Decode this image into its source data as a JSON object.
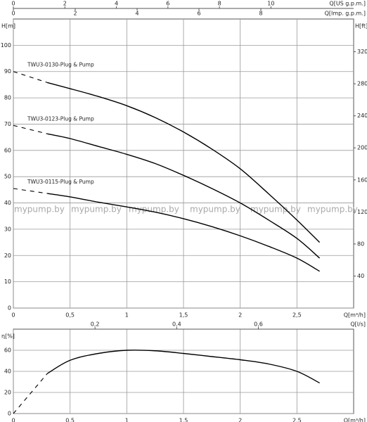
{
  "chart_data": [
    {
      "type": "line",
      "xlim": [
        0,
        3
      ],
      "xticks": [
        0,
        {
          "value": 0.5,
          "label": "0,5"
        },
        1,
        {
          "value": 1.5,
          "label": "1,5"
        },
        2,
        {
          "value": 2.5,
          "label": "2,5"
        }
      ],
      "xlabel": "Q[m³/h]",
      "ylim": [
        0,
        110
      ],
      "yticks": [
        0,
        10,
        20,
        30,
        40,
        50,
        60,
        70,
        80,
        90,
        100
      ],
      "ylabel": "H[m]",
      "y2lim": [
        0,
        360.9
      ],
      "y2ticks": [
        40,
        80,
        120,
        160,
        200,
        240,
        280,
        320
      ],
      "y2label": "H[ft]",
      "grid": true,
      "top_axes": [
        {
          "label": "Q[US g.p.m.]",
          "xlim": [
            0,
            13.21
          ],
          "xticks": [
            0,
            2,
            4,
            6,
            8,
            10
          ]
        },
        {
          "label": "Q[Imp. g.p.m.]",
          "xlim": [
            0,
            11.0
          ],
          "xticks": [
            0,
            2,
            4,
            6,
            8
          ]
        }
      ],
      "watermark": "mypump.by",
      "series": [
        {
          "name": "TWU3-0130-Plug & Pump",
          "color": "#000000",
          "extrapolation": {
            "x": [
              0
            ],
            "values": [
              90
            ]
          },
          "x": [
            0.3,
            0.5,
            0.75,
            1,
            1.25,
            1.5,
            1.75,
            2,
            2.25,
            2.5,
            2.7
          ],
          "values": [
            85.8,
            83.5,
            80.5,
            77,
            72.5,
            67,
            60.5,
            53,
            43.5,
            33.5,
            25
          ]
        },
        {
          "name": "TWU3-0123-Plug & Pump",
          "color": "#000000",
          "extrapolation": {
            "x": [
              0
            ],
            "values": [
              69.5
            ]
          },
          "x": [
            0.3,
            0.5,
            0.75,
            1,
            1.25,
            1.5,
            1.75,
            2,
            2.25,
            2.5,
            2.7
          ],
          "values": [
            66.3,
            64.5,
            61.5,
            58.5,
            55,
            50.5,
            45.5,
            40,
            33.5,
            26.5,
            19
          ]
        },
        {
          "name": "TWU3-0115-Plug & Pump",
          "color": "#000000",
          "extrapolation": {
            "x": [
              0
            ],
            "values": [
              45.5
            ]
          },
          "x": [
            0.3,
            0.5,
            0.75,
            1,
            1.25,
            1.5,
            1.75,
            2,
            2.25,
            2.5,
            2.7
          ],
          "values": [
            43.6,
            42.3,
            40.3,
            38.5,
            36.5,
            34,
            31,
            27.5,
            23.5,
            19,
            14
          ]
        }
      ]
    },
    {
      "type": "line",
      "xlim": [
        0,
        3
      ],
      "xticks": [
        0,
        {
          "value": 0.5,
          "label": "0,5"
        },
        1,
        {
          "value": 1.5,
          "label": "1,5"
        },
        2,
        {
          "value": 2.5,
          "label": "2,5"
        }
      ],
      "xlabel": "Q[m³/h]",
      "ylim": [
        0,
        80
      ],
      "yticks": [
        0,
        20,
        40,
        60
      ],
      "ylabel": "η[%]",
      "grid": true,
      "top_axes": [
        {
          "label": "Q[l/s]",
          "xlim": [
            0,
            0.8333
          ],
          "xticks": [
            {
              "value": 0.2,
              "label": "0,2"
            },
            {
              "value": 0.4,
              "label": "0,4"
            },
            {
              "value": 0.6,
              "label": "0,6"
            }
          ]
        }
      ],
      "series": [
        {
          "color": "#000000",
          "extrapolation": {
            "x": [
              0
            ],
            "values": [
              0
            ]
          },
          "x": [
            0.3,
            0.5,
            0.75,
            1,
            1.25,
            1.5,
            1.75,
            2,
            2.25,
            2.5,
            2.7
          ],
          "values": [
            38,
            50.5,
            57,
            60,
            59.5,
            57,
            54,
            51,
            47,
            40,
            29
          ]
        }
      ]
    }
  ]
}
